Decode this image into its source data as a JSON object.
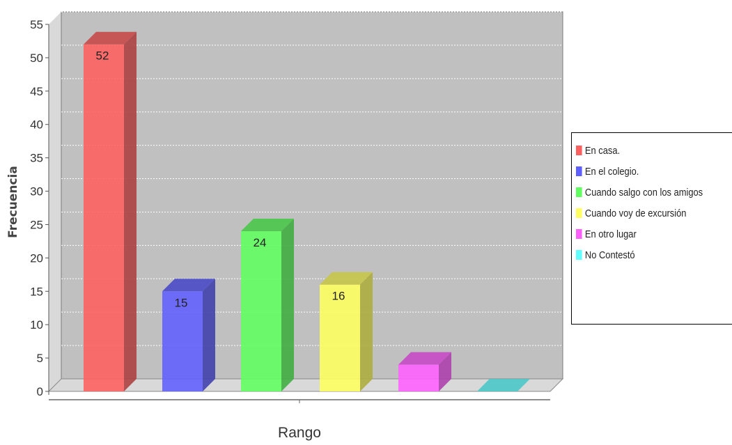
{
  "chart_data": {
    "type": "bar",
    "title": "",
    "xlabel": "Rango",
    "ylabel": "Frecuencia",
    "ylim": [
      0,
      55
    ],
    "yticks": [
      0,
      5,
      10,
      15,
      20,
      25,
      30,
      35,
      40,
      45,
      50,
      55
    ],
    "grid": true,
    "legend_position": "right",
    "series": [
      {
        "name": "En casa.",
        "value": 52,
        "label": "52",
        "color": "#ff5f5f"
      },
      {
        "name": "En el colegio.",
        "value": 15,
        "label": "15",
        "color": "#5f5fff"
      },
      {
        "name": "Cuando salgo con los amigos",
        "value": 24,
        "label": "24",
        "color": "#5fff5f"
      },
      {
        "name": "Cuando voy de excursión",
        "value": 16,
        "label": "16",
        "color": "#ffff5f"
      },
      {
        "name": "En otro lugar",
        "value": 4,
        "label": "",
        "color": "#ff5fff"
      },
      {
        "name": "No Contestó",
        "value": 0,
        "label": "",
        "color": "#5fffff"
      }
    ]
  }
}
